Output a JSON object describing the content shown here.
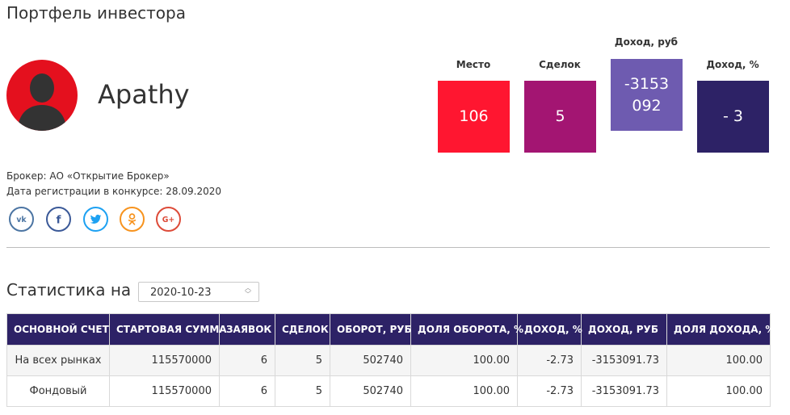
{
  "page": {
    "title": "Портфель инвестора"
  },
  "profile": {
    "username": "Apathy",
    "broker_label": "Брокер:",
    "broker_value": "АО «Открытие Брокер»",
    "reg_label": "Дата регистрации в конкурсе:",
    "reg_value": "28.09.2020"
  },
  "stats": [
    {
      "label": "Место",
      "value": "106",
      "color": "#ff1630"
    },
    {
      "label": "Сделок",
      "value": "5",
      "color": "#a31572"
    },
    {
      "label": "Доход, руб",
      "value": "-3153 092",
      "color": "#6e5bb0"
    },
    {
      "label": "Доход, %",
      "value": "- 3",
      "color": "#2d2266"
    }
  ],
  "socials": [
    {
      "icon": "vk-icon",
      "text": "vk",
      "color": "#4c75a3"
    },
    {
      "icon": "facebook-icon",
      "text": "f",
      "color": "#3b5998"
    },
    {
      "icon": "twitter-icon",
      "text": "t",
      "color": "#1da1f2"
    },
    {
      "icon": "odnoklassniki-icon",
      "text": "ok",
      "color": "#f7931e"
    },
    {
      "icon": "google-plus-icon",
      "text": "G+",
      "color": "#dd4b39"
    }
  ],
  "statistics": {
    "title": "Статистика на",
    "date": "2020-10-23",
    "columns": [
      "ОСНОВНОЙ СЧЕТ",
      "СТАРТОВАЯ СУММА",
      "ЗАЯВОК",
      "СДЕЛОК",
      "ОБОРОТ, РУБ",
      "ДОЛЯ ОБОРОТА, %",
      "ДОХОД, %",
      "ДОХОД, РУБ",
      "ДОЛЯ ДОХОДА, %"
    ],
    "rows": [
      [
        "На всех рынках",
        "115570000",
        "6",
        "5",
        "502740",
        "100.00",
        "-2.73",
        "-3153091.73",
        "100.00"
      ],
      [
        "Фондовый",
        "115570000",
        "6",
        "5",
        "502740",
        "100.00",
        "-2.73",
        "-3153091.73",
        "100.00"
      ]
    ]
  }
}
